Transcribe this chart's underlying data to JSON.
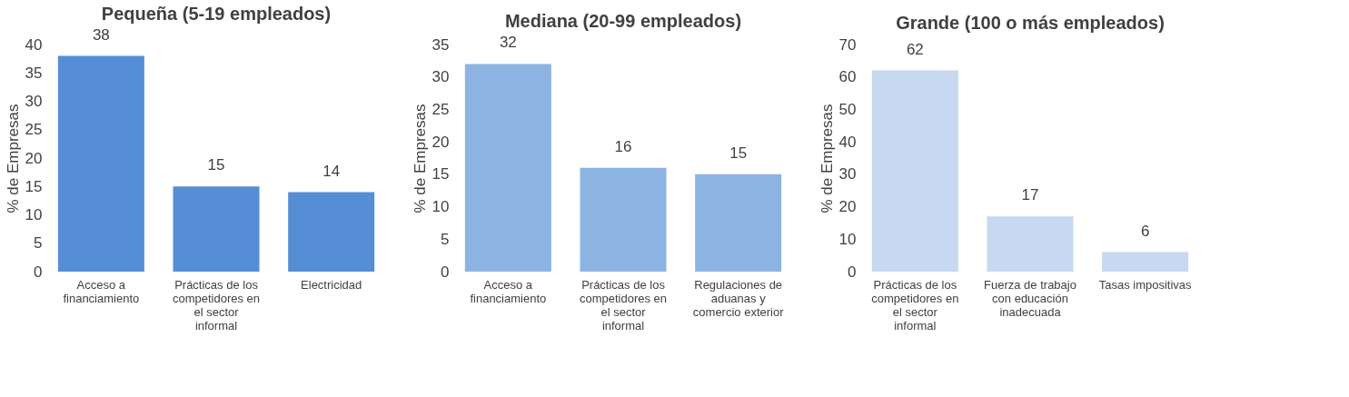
{
  "chart_data": [
    {
      "type": "bar",
      "title": "Pequeña (5-19 empleados)",
      "ylabel": "% de Empresas",
      "categories": [
        "Acceso a financiamiento",
        "Prácticas de los competidores en el sector informal",
        "Electricidad"
      ],
      "values": [
        38,
        15,
        14
      ],
      "color": "#558ed5",
      "ylim": [
        0,
        40
      ],
      "yticks": [
        0,
        5,
        10,
        15,
        20,
        25,
        30,
        35,
        40
      ],
      "data_labels": true,
      "grid": false
    },
    {
      "type": "bar",
      "title": "Mediana (20-99 empleados)",
      "ylabel": "% de Empresas",
      "categories": [
        "Acceso a financiamiento",
        "Prácticas de los competidores en el sector informal",
        "Regulaciones de aduanas y comercio exterior"
      ],
      "values": [
        32,
        16,
        15
      ],
      "color": "#8db3e2",
      "ylim": [
        0,
        35
      ],
      "yticks": [
        0,
        5,
        10,
        15,
        20,
        25,
        30,
        35
      ],
      "data_labels": true,
      "grid": false
    },
    {
      "type": "bar",
      "title": "Grande (100 o más empleados)",
      "ylabel": "% de Empresas",
      "categories": [
        "Prácticas de los competidores en el sector informal",
        "Fuerza de trabajo con educación inadecuada",
        "Tasas impositivas"
      ],
      "values": [
        62,
        17,
        6
      ],
      "color": "#c6d9f1",
      "ylim": [
        0,
        70
      ],
      "yticks": [
        0,
        10,
        20,
        30,
        40,
        50,
        60,
        70
      ],
      "data_labels": true,
      "grid": false
    }
  ]
}
